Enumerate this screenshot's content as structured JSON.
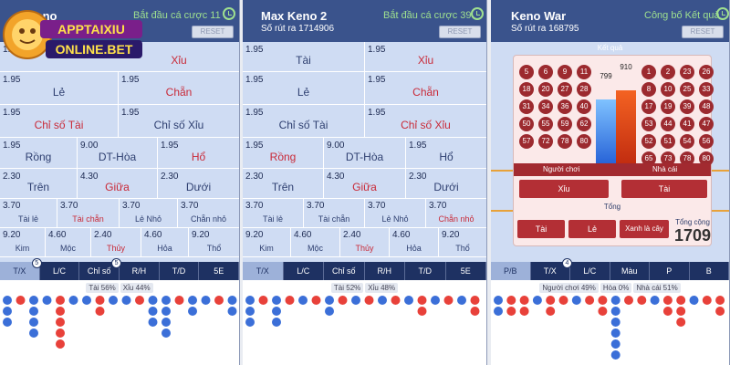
{
  "panel1": {
    "title": "Keno",
    "draw": "",
    "bet_status": "Bắt đầu cá cược 11",
    "reset": "RESET",
    "grid": {
      "r1_odd": "1.95",
      "r1_lab": "Xỉu",
      "r2_odd": "1.95",
      "r2_lab": "Lẻ",
      "r2b_odd": "1.95",
      "r2b_lab": "Chẵn",
      "r3_odd": "1.95",
      "r3_lab": "Chỉ số Tài",
      "r3b_odd": "1.95",
      "r3b_lab": "Chỉ số Xỉu",
      "r4a_odd": "1.95",
      "r4a_lab": "Rồng",
      "r4b_odd": "9.00",
      "r4b_lab": "DT-Hòa",
      "r4c_odd": "1.95",
      "r4c_lab": "Hổ",
      "r5a_odd": "2.30",
      "r5a_lab": "Trên",
      "r5b_odd": "4.30",
      "r5b_lab": "Giữa",
      "r5c_odd": "2.30",
      "r5c_lab": "Dưới",
      "r6a_odd": "3.70",
      "r6a_lab": "Tài lẻ",
      "r6b_odd": "3.70",
      "r6b_lab": "Tài chẵn",
      "r6c_odd": "3.70",
      "r6c_lab": "Lẻ Nhỏ",
      "r6d_odd": "3.70",
      "r6d_lab": "Chẵn nhỏ",
      "r7a_odd": "9.20",
      "r7a_lab": "Kim",
      "r7b_odd": "4.60",
      "r7b_lab": "Mộc",
      "r7c_odd": "2.40",
      "r7c_lab": "Thủy",
      "r7d_odd": "4.60",
      "r7d_lab": "Hỏa",
      "r7e_odd": "9.20",
      "r7e_lab": "Thổ"
    },
    "tabs": [
      "T/X",
      "L/C",
      "Chỉ số",
      "R/H",
      "T/D",
      "5E"
    ],
    "badge_tx": "5",
    "badge_chiso": "5",
    "stat_tai": "Tài 56%",
    "stat_xiu": "Xỉu 44%"
  },
  "panel2": {
    "title": "Max Keno 2",
    "draw": "Số rút ra 1714906",
    "bet_status": "Bắt đầu cá cược 39",
    "reset": "RESET",
    "grid": {
      "r1a_odd": "1.95",
      "r1a_lab": "Tài",
      "r1b_odd": "1.95",
      "r1b_lab": "Xỉu",
      "r2a_odd": "1.95",
      "r2a_lab": "Lẻ",
      "r2b_odd": "1.95",
      "r2b_lab": "Chẵn",
      "r3a_odd": "1.95",
      "r3a_lab": "Chỉ số Tài",
      "r3b_odd": "1.95",
      "r3b_lab": "Chỉ số Xỉu",
      "r4a_odd": "1.95",
      "r4a_lab": "Rồng",
      "r4b_odd": "9.00",
      "r4b_lab": "DT-Hòa",
      "r4c_odd": "1.95",
      "r4c_lab": "Hổ",
      "r5a_odd": "2.30",
      "r5a_lab": "Trên",
      "r5b_odd": "4.30",
      "r5b_lab": "Giữa",
      "r5c_odd": "2.30",
      "r5c_lab": "Dưới",
      "r6a_odd": "3.70",
      "r6a_lab": "Tài lẻ",
      "r6b_odd": "3.70",
      "r6b_lab": "Tài chẵn",
      "r6c_odd": "3.70",
      "r6c_lab": "Lẻ Nhỏ",
      "r6d_odd": "3.70",
      "r6d_lab": "Chẵn nhỏ",
      "r7a_odd": "9.20",
      "r7a_lab": "Kim",
      "r7b_odd": "4.60",
      "r7b_lab": "Mộc",
      "r7c_odd": "2.40",
      "r7c_lab": "Thủy",
      "r7d_odd": "4.60",
      "r7d_lab": "Hỏa",
      "r7e_odd": "9.20",
      "r7e_lab": "Thổ"
    },
    "tabs": [
      "T/X",
      "L/C",
      "Chỉ số",
      "R/H",
      "T/D",
      "5E"
    ],
    "stat_tai": "Tài 52%",
    "stat_xiu": "Xỉu 48%"
  },
  "panel3": {
    "title": "Keno War",
    "draw": "Số rút ra 168795",
    "status": "Công bố Kết quả",
    "reset": "RESET",
    "result_label": "Kết quả",
    "player_balls": [
      "5",
      "6",
      "9",
      "11",
      "18",
      "20",
      "27",
      "28",
      "31",
      "34",
      "36",
      "40",
      "50",
      "55",
      "59",
      "62",
      "57",
      "72",
      "78",
      "80"
    ],
    "banker_balls": [
      "1",
      "2",
      "23",
      "26",
      "8",
      "10",
      "25",
      "33",
      "17",
      "19",
      "39",
      "48",
      "53",
      "44",
      "41",
      "47",
      "52",
      "51",
      "54",
      "56",
      "65",
      "73",
      "78",
      "80"
    ],
    "player_bar": {
      "value": "799",
      "fraction": 0.7
    },
    "banker_bar": {
      "value": "910",
      "fraction": 0.8
    },
    "player_label": "Người chơi",
    "banker_label": "Nhà cái",
    "btn_xiu": "Xỉu",
    "btn_tai": "Tài",
    "total_label": "Tổng",
    "btn_tai2": "Tài",
    "btn_le": "Lẻ",
    "btn_xanh": "Xanh là cây",
    "total_title": "Tổng cộng",
    "total_value": "1709",
    "tabs": [
      "P/B",
      "T/X",
      "L/C",
      "Màu",
      "P",
      "B"
    ],
    "badge_tx": "4",
    "stat_player": "Người chơi 49%",
    "stat_hoa": "Hòa 0%",
    "stat_banker": "Nhà cái 51%"
  },
  "logo": {
    "line1": "APPTAIXIU",
    "line2": "ONLINE.BET"
  },
  "colors": {
    "header": "#3a538c",
    "tabbar": "#1e3162",
    "red_ball": "#b32f35",
    "blue_bar": "#3f8ef5",
    "red_bar": "#e3440f"
  }
}
